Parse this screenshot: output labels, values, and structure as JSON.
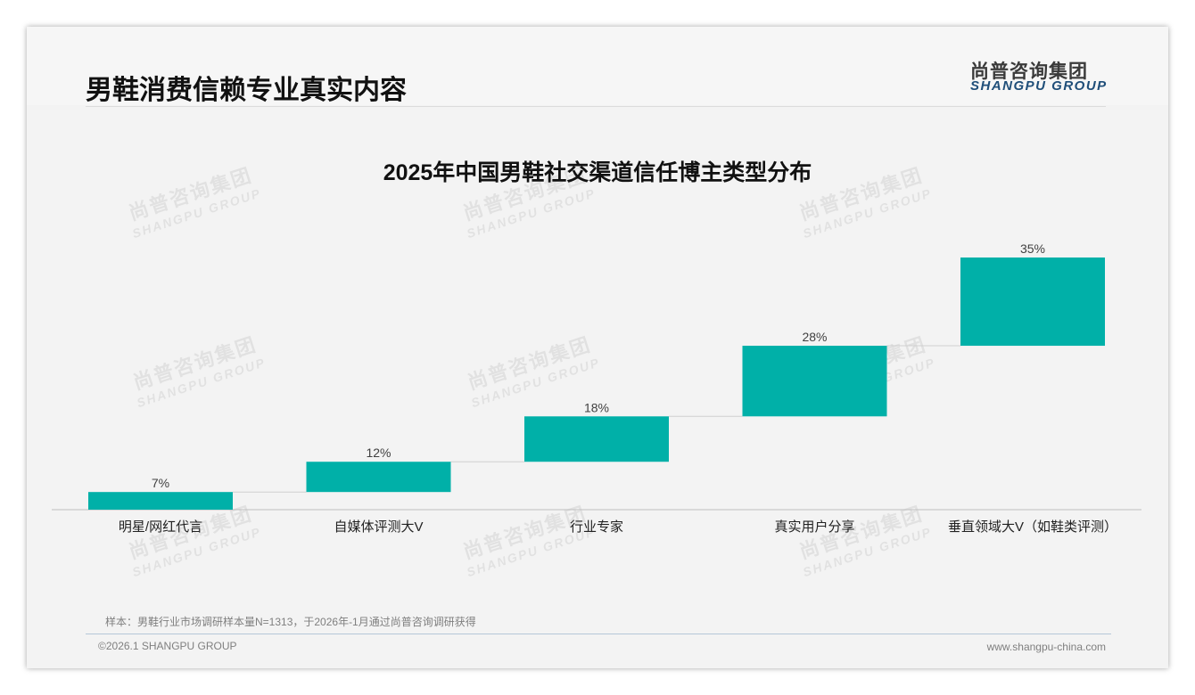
{
  "header": {
    "title": "男鞋消费信赖专业真实内容"
  },
  "logo": {
    "cn": "尚普咨询集团",
    "en": "SHANGPU GROUP"
  },
  "watermark": {
    "cn": "尚普咨询集团",
    "en": "SHANGPU GROUP"
  },
  "footer": {
    "note": "样本：男鞋行业市场调研样本量N=1313，于2026年-1月通过尚普咨询调研获得",
    "copyright": "©2026.1 SHANGPU GROUP",
    "website": "www.shangpu-china.com"
  },
  "colors": {
    "bar": "#00b0a8",
    "connector": "#d0d0d0",
    "axis": "#bfbfbf"
  },
  "chart_data": {
    "type": "bar",
    "subtype": "waterfall",
    "title": "2025年中国男鞋社交渠道信任博主类型分布",
    "categories": [
      "明星/网红代言",
      "自媒体评测大V",
      "行业专家",
      "真实用户分享",
      "垂直领域大V（如鞋类评测）"
    ],
    "values": [
      7,
      12,
      18,
      28,
      35
    ],
    "labels": [
      "7%",
      "12%",
      "18%",
      "28%",
      "35%"
    ],
    "unit": "%",
    "ylim": [
      0,
      100
    ],
    "xlabel": "",
    "ylabel": "",
    "grid": false,
    "legend": "none"
  }
}
